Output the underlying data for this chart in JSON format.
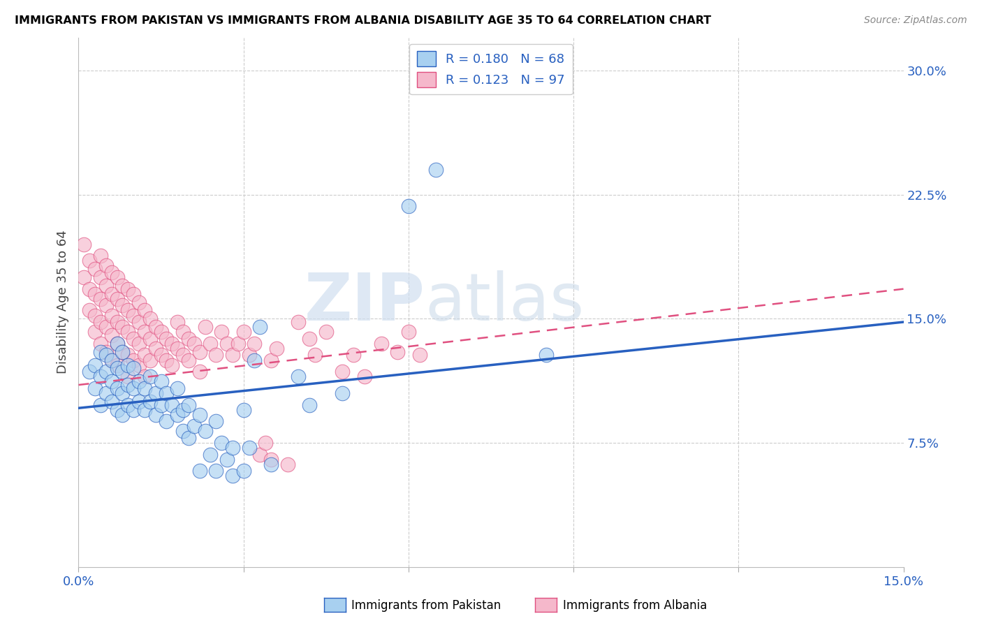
{
  "title": "IMMIGRANTS FROM PAKISTAN VS IMMIGRANTS FROM ALBANIA DISABILITY AGE 35 TO 64 CORRELATION CHART",
  "source": "Source: ZipAtlas.com",
  "ylabel": "Disability Age 35 to 64",
  "xlim": [
    0.0,
    0.15
  ],
  "ylim": [
    0.0,
    0.32
  ],
  "legend_r1": "R = 0.180",
  "legend_n1": "N = 68",
  "legend_r2": "R = 0.123",
  "legend_n2": "N = 97",
  "color_pakistan": "#a8d0f0",
  "color_albania": "#f5b8cb",
  "line_color_pakistan": "#2860c0",
  "line_color_albania": "#e05080",
  "background_color": "#ffffff",
  "grid_color": "#cccccc",
  "watermark_zip": "ZIP",
  "watermark_atlas": "atlas",
  "pakistan_points": [
    [
      0.002,
      0.118
    ],
    [
      0.003,
      0.108
    ],
    [
      0.003,
      0.122
    ],
    [
      0.004,
      0.098
    ],
    [
      0.004,
      0.115
    ],
    [
      0.004,
      0.13
    ],
    [
      0.005,
      0.105
    ],
    [
      0.005,
      0.118
    ],
    [
      0.005,
      0.128
    ],
    [
      0.006,
      0.1
    ],
    [
      0.006,
      0.112
    ],
    [
      0.006,
      0.125
    ],
    [
      0.007,
      0.095
    ],
    [
      0.007,
      0.108
    ],
    [
      0.007,
      0.12
    ],
    [
      0.007,
      0.135
    ],
    [
      0.008,
      0.092
    ],
    [
      0.008,
      0.105
    ],
    [
      0.008,
      0.118
    ],
    [
      0.008,
      0.13
    ],
    [
      0.009,
      0.098
    ],
    [
      0.009,
      0.11
    ],
    [
      0.009,
      0.122
    ],
    [
      0.01,
      0.095
    ],
    [
      0.01,
      0.108
    ],
    [
      0.01,
      0.12
    ],
    [
      0.011,
      0.1
    ],
    [
      0.011,
      0.112
    ],
    [
      0.012,
      0.095
    ],
    [
      0.012,
      0.108
    ],
    [
      0.013,
      0.1
    ],
    [
      0.013,
      0.115
    ],
    [
      0.014,
      0.092
    ],
    [
      0.014,
      0.105
    ],
    [
      0.015,
      0.098
    ],
    [
      0.015,
      0.112
    ],
    [
      0.016,
      0.088
    ],
    [
      0.016,
      0.105
    ],
    [
      0.017,
      0.098
    ],
    [
      0.018,
      0.092
    ],
    [
      0.018,
      0.108
    ],
    [
      0.019,
      0.082
    ],
    [
      0.019,
      0.095
    ],
    [
      0.02,
      0.078
    ],
    [
      0.02,
      0.098
    ],
    [
      0.021,
      0.085
    ],
    [
      0.022,
      0.092
    ],
    [
      0.022,
      0.058
    ],
    [
      0.023,
      0.082
    ],
    [
      0.024,
      0.068
    ],
    [
      0.025,
      0.088
    ],
    [
      0.025,
      0.058
    ],
    [
      0.026,
      0.075
    ],
    [
      0.027,
      0.065
    ],
    [
      0.028,
      0.055
    ],
    [
      0.028,
      0.072
    ],
    [
      0.03,
      0.095
    ],
    [
      0.03,
      0.058
    ],
    [
      0.031,
      0.072
    ],
    [
      0.032,
      0.125
    ],
    [
      0.033,
      0.145
    ],
    [
      0.035,
      0.062
    ],
    [
      0.04,
      0.115
    ],
    [
      0.042,
      0.098
    ],
    [
      0.048,
      0.105
    ],
    [
      0.06,
      0.218
    ],
    [
      0.065,
      0.24
    ],
    [
      0.085,
      0.128
    ]
  ],
  "albania_points": [
    [
      0.001,
      0.195
    ],
    [
      0.001,
      0.175
    ],
    [
      0.002,
      0.185
    ],
    [
      0.002,
      0.168
    ],
    [
      0.002,
      0.155
    ],
    [
      0.003,
      0.18
    ],
    [
      0.003,
      0.165
    ],
    [
      0.003,
      0.152
    ],
    [
      0.003,
      0.142
    ],
    [
      0.004,
      0.188
    ],
    [
      0.004,
      0.175
    ],
    [
      0.004,
      0.162
    ],
    [
      0.004,
      0.148
    ],
    [
      0.004,
      0.135
    ],
    [
      0.005,
      0.182
    ],
    [
      0.005,
      0.17
    ],
    [
      0.005,
      0.158
    ],
    [
      0.005,
      0.145
    ],
    [
      0.005,
      0.13
    ],
    [
      0.006,
      0.178
    ],
    [
      0.006,
      0.165
    ],
    [
      0.006,
      0.152
    ],
    [
      0.006,
      0.14
    ],
    [
      0.006,
      0.125
    ],
    [
      0.007,
      0.175
    ],
    [
      0.007,
      0.162
    ],
    [
      0.007,
      0.148
    ],
    [
      0.007,
      0.135
    ],
    [
      0.007,
      0.122
    ],
    [
      0.008,
      0.17
    ],
    [
      0.008,
      0.158
    ],
    [
      0.008,
      0.145
    ],
    [
      0.008,
      0.13
    ],
    [
      0.009,
      0.168
    ],
    [
      0.009,
      0.155
    ],
    [
      0.009,
      0.142
    ],
    [
      0.009,
      0.128
    ],
    [
      0.009,
      0.115
    ],
    [
      0.01,
      0.165
    ],
    [
      0.01,
      0.152
    ],
    [
      0.01,
      0.138
    ],
    [
      0.01,
      0.125
    ],
    [
      0.011,
      0.16
    ],
    [
      0.011,
      0.148
    ],
    [
      0.011,
      0.135
    ],
    [
      0.011,
      0.122
    ],
    [
      0.012,
      0.155
    ],
    [
      0.012,
      0.142
    ],
    [
      0.012,
      0.128
    ],
    [
      0.012,
      0.115
    ],
    [
      0.013,
      0.15
    ],
    [
      0.013,
      0.138
    ],
    [
      0.013,
      0.125
    ],
    [
      0.014,
      0.145
    ],
    [
      0.014,
      0.132
    ],
    [
      0.015,
      0.142
    ],
    [
      0.015,
      0.128
    ],
    [
      0.016,
      0.138
    ],
    [
      0.016,
      0.125
    ],
    [
      0.017,
      0.135
    ],
    [
      0.017,
      0.122
    ],
    [
      0.018,
      0.148
    ],
    [
      0.018,
      0.132
    ],
    [
      0.019,
      0.142
    ],
    [
      0.019,
      0.128
    ],
    [
      0.02,
      0.138
    ],
    [
      0.02,
      0.125
    ],
    [
      0.021,
      0.135
    ],
    [
      0.022,
      0.13
    ],
    [
      0.022,
      0.118
    ],
    [
      0.023,
      0.145
    ],
    [
      0.024,
      0.135
    ],
    [
      0.025,
      0.128
    ],
    [
      0.026,
      0.142
    ],
    [
      0.027,
      0.135
    ],
    [
      0.028,
      0.128
    ],
    [
      0.029,
      0.135
    ],
    [
      0.03,
      0.142
    ],
    [
      0.031,
      0.128
    ],
    [
      0.032,
      0.135
    ],
    [
      0.033,
      0.068
    ],
    [
      0.034,
      0.075
    ],
    [
      0.035,
      0.125
    ],
    [
      0.035,
      0.065
    ],
    [
      0.036,
      0.132
    ],
    [
      0.038,
      0.062
    ],
    [
      0.04,
      0.148
    ],
    [
      0.042,
      0.138
    ],
    [
      0.043,
      0.128
    ],
    [
      0.045,
      0.142
    ],
    [
      0.048,
      0.118
    ],
    [
      0.05,
      0.128
    ],
    [
      0.052,
      0.115
    ],
    [
      0.055,
      0.135
    ],
    [
      0.058,
      0.13
    ],
    [
      0.06,
      0.142
    ],
    [
      0.062,
      0.128
    ]
  ],
  "pakistan_line": {
    "x0": 0.0,
    "y0": 0.096,
    "x1": 0.15,
    "y1": 0.148
  },
  "albania_line": {
    "x0": 0.0,
    "y0": 0.11,
    "x1": 0.15,
    "y1": 0.168
  }
}
